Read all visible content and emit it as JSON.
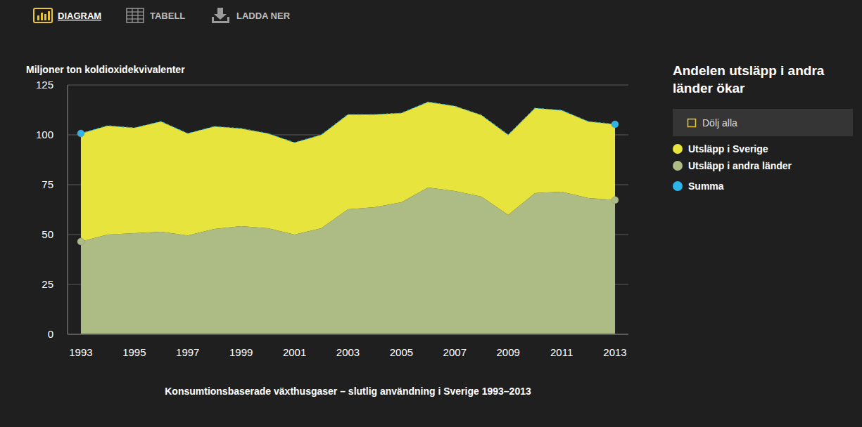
{
  "toolbar": {
    "items": [
      "DIAGRAM",
      "TABELL",
      "LADDA NER"
    ]
  },
  "legend_controls": {
    "toggle": "Dölj alla"
  },
  "chart_data": {
    "type": "area",
    "title": "Konsumtionsbaserade växthusgaser – slutlig användning i Sverige 1993–2013",
    "subtitle": "Andelen utsläpp i andra länder ökar",
    "ylabel": "Miljoner ton koldioxidekvivalenter",
    "stacked": true,
    "grid": true,
    "legend": "right",
    "x": [
      1993,
      1994,
      1995,
      1996,
      1997,
      1998,
      1999,
      2000,
      2001,
      2002,
      2003,
      2004,
      2005,
      2006,
      2007,
      2008,
      2009,
      2010,
      2011,
      2012,
      2013
    ],
    "xlim": [
      1992.5,
      2013.5
    ],
    "xticks": [
      1993,
      1995,
      1997,
      1999,
      2001,
      2003,
      2005,
      2007,
      2009,
      2011,
      2013
    ],
    "ylim": [
      0,
      125
    ],
    "yticks": [
      0,
      25,
      50,
      75,
      100,
      125
    ],
    "series": [
      {
        "name": "Utsläpp i Sverige",
        "type": "area",
        "color": "#e8e43e",
        "values": [
          54.2,
          54.6,
          52.8,
          55.3,
          51.1,
          51.4,
          49.0,
          47.5,
          46.1,
          46.8,
          47.5,
          46.5,
          44.7,
          42.9,
          42.6,
          40.9,
          40.1,
          42.6,
          40.8,
          38.4,
          38.0
        ]
      },
      {
        "name": "Utsläpp i andra länder",
        "type": "area",
        "color": "#adbb85",
        "marker": "ends",
        "values": [
          46.5,
          50.0,
          50.7,
          51.4,
          49.6,
          52.8,
          54.2,
          53.2,
          50.0,
          53.2,
          62.7,
          63.7,
          66.2,
          73.6,
          71.8,
          69.0,
          59.9,
          70.8,
          71.5,
          68.3,
          67.3
        ]
      },
      {
        "name": "Summa",
        "type": "line",
        "color": "#2bb5e8",
        "marker": "ends",
        "line_style": "dashed",
        "values": [
          100.7,
          104.6,
          103.5,
          106.7,
          100.7,
          104.2,
          103.2,
          100.7,
          96.1,
          100.0,
          110.2,
          110.2,
          110.9,
          116.5,
          114.4,
          109.9,
          100.0,
          113.4,
          112.3,
          106.7,
          105.3
        ]
      }
    ]
  }
}
